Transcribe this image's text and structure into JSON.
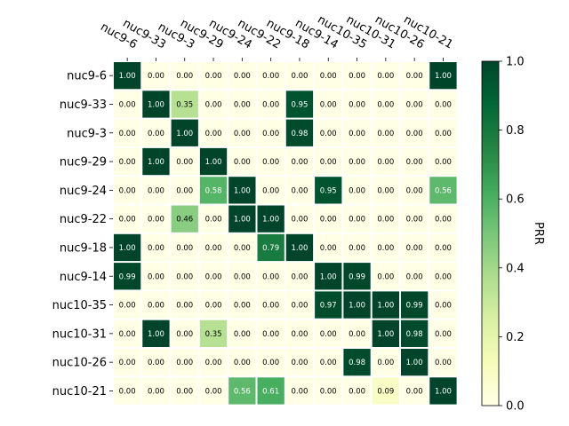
{
  "chart_data": {
    "type": "heatmap",
    "x_labels": [
      "nuc9-6",
      "nuc9-33",
      "nuc9-3",
      "nuc9-29",
      "nuc9-24",
      "nuc9-22",
      "nuc9-18",
      "nuc9-14",
      "nuc10-35",
      "nuc10-31",
      "nuc10-26",
      "nuc10-21"
    ],
    "y_labels": [
      "nuc9-6",
      "nuc9-33",
      "nuc9-3",
      "nuc9-29",
      "nuc9-24",
      "nuc9-22",
      "nuc9-18",
      "nuc9-14",
      "nuc10-35",
      "nuc10-31",
      "nuc10-26",
      "nuc10-21"
    ],
    "values": [
      [
        1.0,
        0.0,
        0.0,
        0.0,
        0.0,
        0.0,
        0.0,
        0.0,
        0.0,
        0.0,
        0.0,
        1.0
      ],
      [
        0.0,
        1.0,
        0.35,
        0.0,
        0.0,
        0.0,
        0.95,
        0.0,
        0.0,
        0.0,
        0.0,
        0.0
      ],
      [
        0.0,
        0.0,
        1.0,
        0.0,
        0.0,
        0.0,
        0.98,
        0.0,
        0.0,
        0.0,
        0.0,
        0.0
      ],
      [
        0.0,
        1.0,
        0.0,
        1.0,
        0.0,
        0.0,
        0.0,
        0.0,
        0.0,
        0.0,
        0.0,
        0.0
      ],
      [
        0.0,
        0.0,
        0.0,
        0.58,
        1.0,
        0.0,
        0.0,
        0.95,
        0.0,
        0.0,
        0.0,
        0.56
      ],
      [
        0.0,
        0.0,
        0.46,
        0.0,
        1.0,
        1.0,
        0.0,
        0.0,
        0.0,
        0.0,
        0.0,
        0.0
      ],
      [
        1.0,
        0.0,
        0.0,
        0.0,
        0.0,
        0.79,
        1.0,
        0.0,
        0.0,
        0.0,
        0.0,
        0.0
      ],
      [
        0.99,
        0.0,
        0.0,
        0.0,
        0.0,
        0.0,
        0.0,
        1.0,
        0.99,
        0.0,
        0.0,
        0.0
      ],
      [
        0.0,
        0.0,
        0.0,
        0.0,
        0.0,
        0.0,
        0.0,
        0.97,
        1.0,
        1.0,
        0.99,
        0.0
      ],
      [
        0.0,
        1.0,
        0.0,
        0.35,
        0.0,
        0.0,
        0.0,
        0.0,
        0.0,
        1.0,
        0.98,
        0.0
      ],
      [
        0.0,
        0.0,
        0.0,
        0.0,
        0.0,
        0.0,
        0.0,
        0.0,
        0.98,
        0.0,
        1.0,
        0.0
      ],
      [
        0.0,
        0.0,
        0.0,
        0.0,
        0.56,
        0.61,
        0.0,
        0.0,
        0.0,
        0.09,
        0.0,
        1.0
      ]
    ],
    "value_format": "2 decimals",
    "colormap": "YlGn",
    "colorbar": {
      "label": "PRR",
      "range": [
        0.0,
        1.0
      ],
      "ticks": [
        "0.0",
        "0.2",
        "0.4",
        "0.6",
        "0.8",
        "1.0"
      ],
      "position": "right"
    },
    "x_tick_position": "top",
    "x_tick_rotation": "rotated",
    "grid": false
  }
}
